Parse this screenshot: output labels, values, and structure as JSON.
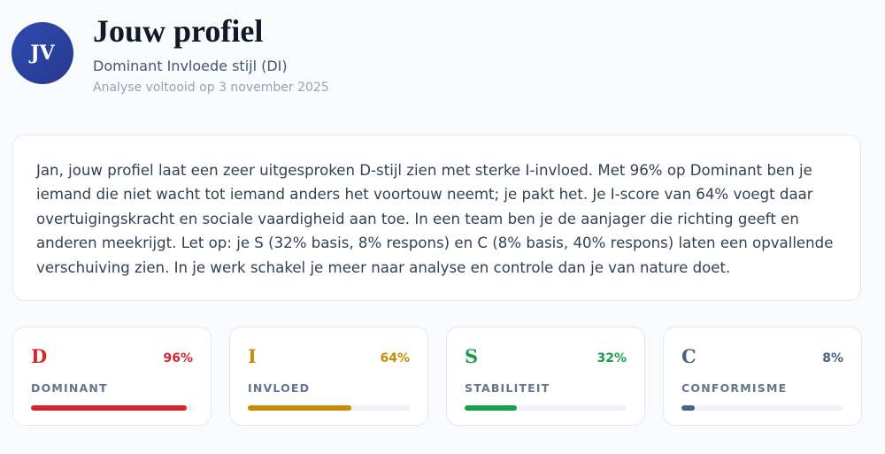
{
  "header": {
    "initials": "JV",
    "title": "Jouw profiel",
    "subtitle": "Dominant Invloede stijl (DI)",
    "date": "Analyse voltooid op 3 november 2025"
  },
  "summary": "Jan, jouw profiel laat een zeer uitgesproken D-stijl zien met sterke I-invloed. Met 96% op Dominant ben je iemand die niet wacht tot iemand anders het voortouw neemt; je pakt het. Je I-score van 64% voegt daar overtuigingskracht en sociale vaardigheid aan toe. In een team ben je de aanjager die richting geeft en anderen meekrijgt. Let op: je S (32% basis, 8% respons) en C (8% basis, 40% respons) laten een opvallende verschuiving zien. In je werk schakel je meer naar analyse en controle dan je van nature doet.",
  "scores": [
    {
      "letter": "D",
      "name": "DOMINANT",
      "value": 96,
      "value_label": "96%",
      "color": "#d0282e"
    },
    {
      "letter": "I",
      "name": "INVLOED",
      "value": 64,
      "value_label": "64%",
      "color": "#c98a06"
    },
    {
      "letter": "S",
      "name": "STABILITEIT",
      "value": 32,
      "value_label": "32%",
      "color": "#17a04a"
    },
    {
      "letter": "C",
      "name": "CONFORMISME",
      "value": 8,
      "value_label": "8%",
      "color": "#4a6285"
    }
  ]
}
